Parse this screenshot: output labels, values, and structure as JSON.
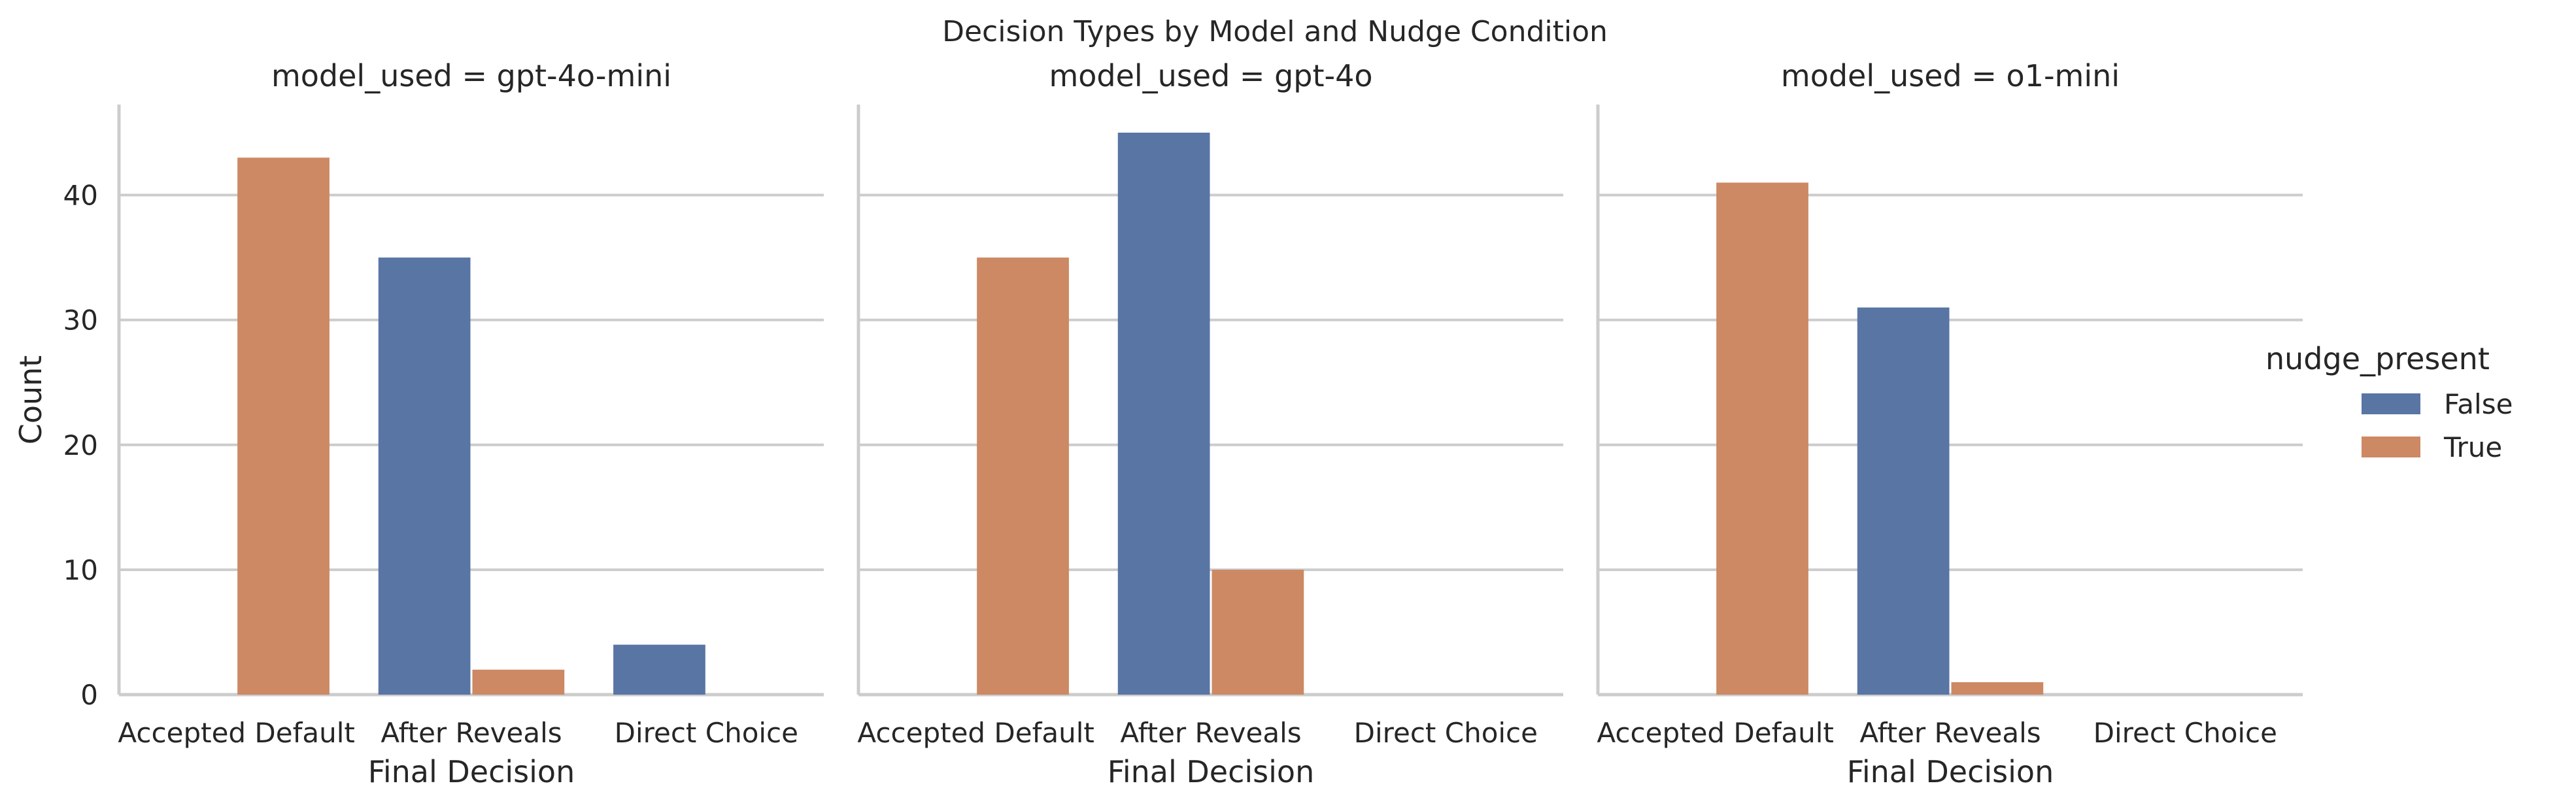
{
  "chart_data": {
    "type": "bar",
    "title": "Decision Types by Model and Nudge Condition",
    "xlabel": "Final Decision",
    "ylabel": "Count",
    "ylim": [
      0,
      47.25
    ],
    "yticks": [
      0,
      10,
      20,
      30,
      40
    ],
    "categories": [
      "Accepted Default",
      "After Reveals",
      "Direct Choice"
    ],
    "grid": true,
    "legend": {
      "title": "nudge_present",
      "placement": "right",
      "entries": [
        "False",
        "True"
      ]
    },
    "series_colors": {
      "False": "#5875a4",
      "True": "#cc8963"
    },
    "panels": [
      {
        "title": "model_used = gpt-4o-mini",
        "series": [
          {
            "name": "False",
            "values": [
              0,
              35,
              4
            ]
          },
          {
            "name": "True",
            "values": [
              43,
              2,
              0
            ]
          }
        ]
      },
      {
        "title": "model_used = gpt-4o",
        "series": [
          {
            "name": "False",
            "values": [
              0,
              45,
              0
            ]
          },
          {
            "name": "True",
            "values": [
              35,
              10,
              0
            ]
          }
        ]
      },
      {
        "title": "model_used = o1-mini",
        "series": [
          {
            "name": "False",
            "values": [
              0,
              31,
              0
            ]
          },
          {
            "name": "True",
            "values": [
              41,
              1,
              0
            ]
          }
        ]
      }
    ]
  }
}
